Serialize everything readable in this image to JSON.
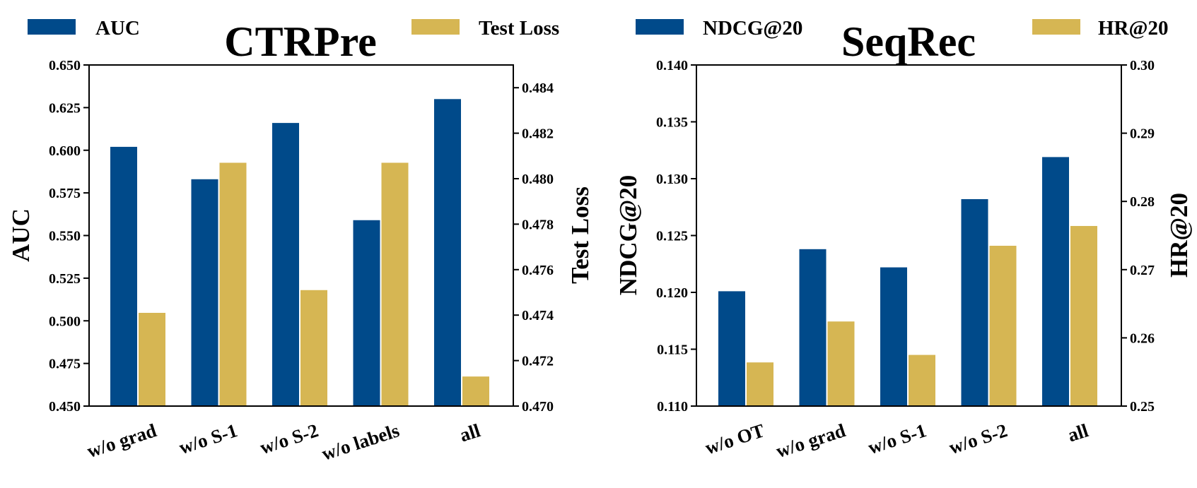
{
  "colors": {
    "series1": "#004a8a",
    "series2": "#d6b653"
  },
  "chart_data": [
    {
      "type": "bar",
      "title": "CTRPre",
      "categories": [
        "w/o grad",
        "w/o S-1",
        "w/o S-2",
        "w/o labels",
        "all"
      ],
      "series": [
        {
          "name": "AUC",
          "axis": "left",
          "values": [
            0.602,
            0.583,
            0.616,
            0.559,
            0.63
          ]
        },
        {
          "name": "Test Loss",
          "axis": "right",
          "values": [
            0.4741,
            0.4807,
            0.4751,
            0.4807,
            0.4713
          ]
        }
      ],
      "ylabel": "AUC",
      "ylabel_right": "Test Loss",
      "ylim": [
        0.45,
        0.65
      ],
      "ylim_right": [
        0.47,
        0.485
      ],
      "yticks": [
        "0.450",
        "0.475",
        "0.500",
        "0.525",
        "0.550",
        "0.575",
        "0.600",
        "0.625",
        "0.650"
      ],
      "yticks_right": [
        "0.470",
        "0.472",
        "0.474",
        "0.476",
        "0.478",
        "0.480",
        "0.482",
        "0.484"
      ],
      "ytick_values": [
        0.45,
        0.475,
        0.5,
        0.525,
        0.55,
        0.575,
        0.6,
        0.625,
        0.65
      ],
      "ytick_values_right": [
        0.47,
        0.472,
        0.474,
        0.476,
        0.478,
        0.48,
        0.482,
        0.484
      ],
      "legend": [
        "AUC",
        "Test Loss"
      ]
    },
    {
      "type": "bar",
      "title": "SeqRec",
      "categories": [
        "w/o OT",
        "w/o grad",
        "w/o S-1",
        "w/o S-2",
        "all"
      ],
      "series": [
        {
          "name": "NDCG@20",
          "axis": "left",
          "values": [
            0.1201,
            0.1238,
            0.1222,
            0.1282,
            0.1319
          ]
        },
        {
          "name": "HR@20",
          "axis": "right",
          "values": [
            0.2564,
            0.2624,
            0.2575,
            0.2735,
            0.2764
          ]
        }
      ],
      "ylabel": "NDCG@20",
      "ylabel_right": "HR@20",
      "ylim": [
        0.11,
        0.14
      ],
      "ylim_right": [
        0.25,
        0.3
      ],
      "yticks": [
        "0.110",
        "0.115",
        "0.120",
        "0.125",
        "0.130",
        "0.135",
        "0.140"
      ],
      "yticks_right": [
        "0.25",
        "0.26",
        "0.27",
        "0.28",
        "0.29",
        "0.30"
      ],
      "ytick_values": [
        0.11,
        0.115,
        0.12,
        0.125,
        0.13,
        0.135,
        0.14
      ],
      "ytick_values_right": [
        0.25,
        0.26,
        0.27,
        0.28,
        0.29,
        0.3
      ],
      "legend": [
        "NDCG@20",
        "HR@20"
      ]
    }
  ]
}
